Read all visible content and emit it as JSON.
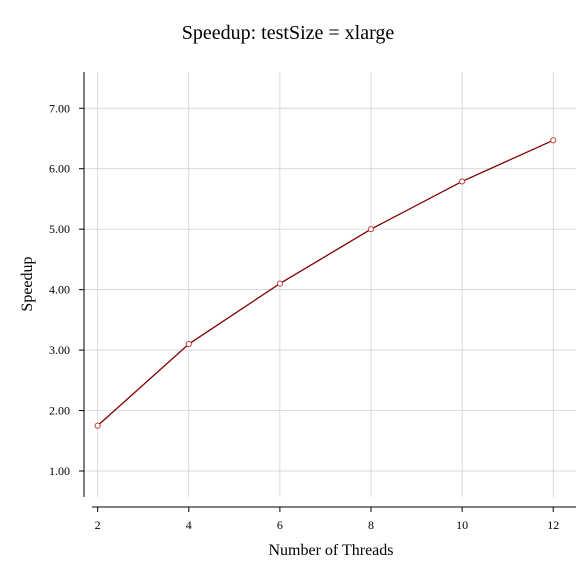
{
  "chart_data": {
    "type": "line",
    "title": "Speedup: testSize = xlarge",
    "xlabel": "Number of Threads",
    "ylabel": "Speedup",
    "x": [
      2,
      4,
      6,
      8,
      10,
      12
    ],
    "x_tick_labels": [
      "2",
      "4",
      "6",
      "8",
      "10",
      "12"
    ],
    "y_ticks": [
      1,
      2,
      3,
      4,
      5,
      6,
      7
    ],
    "y_tick_labels": [
      "1.00",
      "2.00",
      "3.00",
      "4.00",
      "5.00",
      "6.00",
      "7.00"
    ],
    "xlim": [
      1.7,
      12.5
    ],
    "ylim": [
      0.57,
      7.6
    ],
    "grid": true,
    "series": [
      {
        "values": [
          1.75,
          3.1,
          4.1,
          5.0,
          5.79,
          6.47
        ],
        "line_color": "#800000",
        "marker_color": "#c04040"
      }
    ]
  }
}
